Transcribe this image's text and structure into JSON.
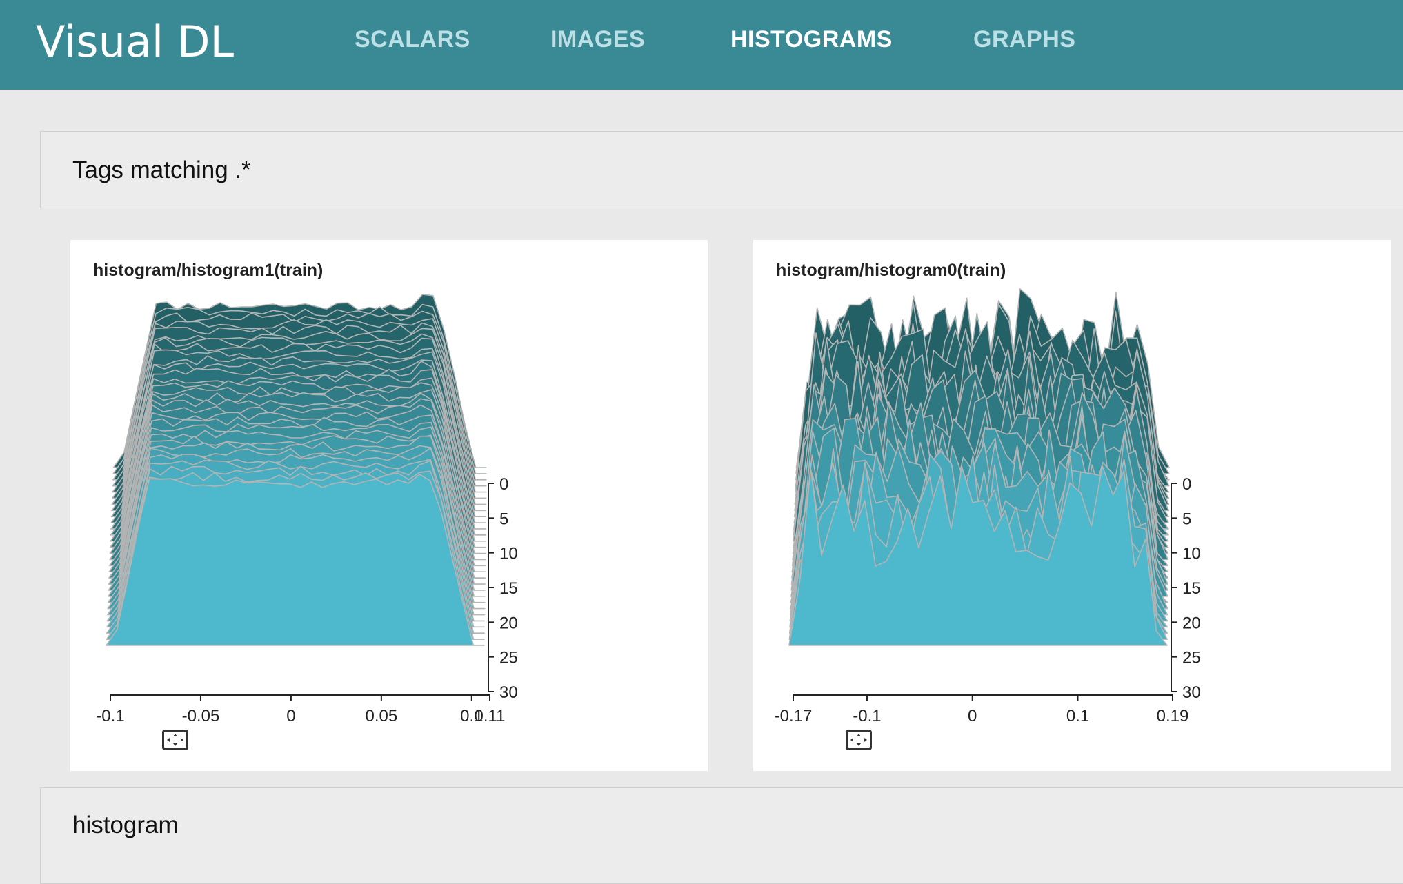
{
  "app": {
    "title": "Visual DL"
  },
  "nav": {
    "items": [
      {
        "label": "SCALARS",
        "active": false
      },
      {
        "label": "IMAGES",
        "active": false
      },
      {
        "label": "HISTOGRAMS",
        "active": true
      },
      {
        "label": "GRAPHS",
        "active": false
      }
    ]
  },
  "tags": {
    "text": "Tags matching .*"
  },
  "group": {
    "title": "histogram"
  },
  "icons": {
    "expand": "expand-icon"
  },
  "colors": {
    "header": "#3a8a96",
    "front_layer": "#4eb8cc",
    "back_layer": "#226066",
    "outline": "#b4b4b4"
  },
  "chart_data": [
    {
      "type": "area",
      "title": "histogram/histogram1(train)",
      "x_ticks": [
        "-0.1",
        "-0.05",
        "0",
        "0.05",
        "0.1",
        "0.11"
      ],
      "xlim": [
        -0.1,
        0.11
      ],
      "step_ticks": [
        "0",
        "5",
        "10",
        "15",
        "20",
        "25",
        "30"
      ],
      "step_range": [
        0,
        30
      ],
      "shape": "plateau",
      "plateau_range": [
        -0.08,
        0.085
      ]
    },
    {
      "type": "area",
      "title": "histogram/histogram0(train)",
      "x_ticks": [
        "-0.17",
        "-0.1",
        "0",
        "0.1",
        "0.19"
      ],
      "xlim": [
        -0.17,
        0.19
      ],
      "step_ticks": [
        "0",
        "5",
        "10",
        "15",
        "20",
        "25",
        "30"
      ],
      "step_range": [
        0,
        30
      ],
      "shape": "noisy",
      "support_range": [
        -0.15,
        0.16
      ]
    }
  ]
}
